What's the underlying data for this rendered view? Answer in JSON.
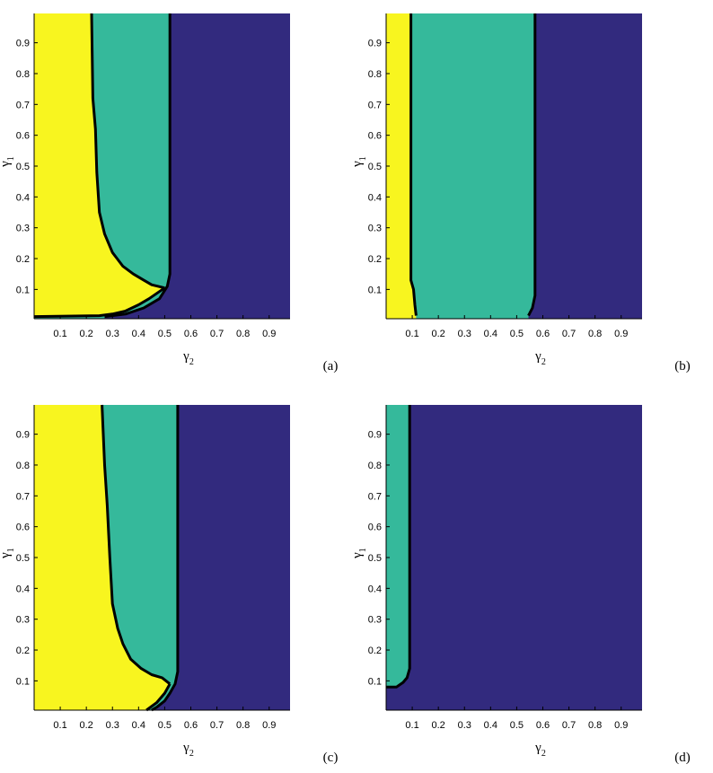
{
  "colors": {
    "yellow": "#f8f51f",
    "teal": "#35b99b",
    "navy": "#322a7e",
    "boundary": "#000000"
  },
  "chart_data": [
    {
      "type": "heatmap",
      "caption": "(a)",
      "xlabel": "γ",
      "xlabel_sub": "2",
      "ylabel": "γ",
      "ylabel_sub": "1",
      "xlim": [
        0,
        0.98
      ],
      "ylim": [
        0.005,
        0.995
      ],
      "xticks": [
        "0.1",
        "0.2",
        "0.3",
        "0.4",
        "0.5",
        "0.6",
        "0.7",
        "0.8",
        "0.9"
      ],
      "yticks": [
        "0.1",
        "0.2",
        "0.3",
        "0.4",
        "0.5",
        "0.6",
        "0.7",
        "0.8",
        "0.9"
      ],
      "regions": {
        "yellow_teal_boundary": [
          [
            0.22,
            0.995
          ],
          [
            0.225,
            0.72
          ],
          [
            0.235,
            0.62
          ],
          [
            0.24,
            0.48
          ],
          [
            0.25,
            0.35
          ],
          [
            0.27,
            0.28
          ],
          [
            0.3,
            0.22
          ],
          [
            0.34,
            0.175
          ],
          [
            0.38,
            0.15
          ],
          [
            0.42,
            0.13
          ],
          [
            0.45,
            0.115
          ],
          [
            0.5,
            0.105
          ]
        ],
        "yellow_lower_boundary": [
          [
            0.5,
            0.105
          ],
          [
            0.44,
            0.07
          ],
          [
            0.4,
            0.05
          ],
          [
            0.35,
            0.03
          ],
          [
            0.3,
            0.02
          ],
          [
            0.25,
            0.015
          ],
          [
            0.0,
            0.012
          ]
        ],
        "teal_navy_boundary": [
          [
            0.52,
            0.995
          ],
          [
            0.52,
            0.15
          ],
          [
            0.51,
            0.11
          ],
          [
            0.48,
            0.07
          ],
          [
            0.42,
            0.04
          ],
          [
            0.35,
            0.02
          ],
          [
            0.27,
            0.012
          ]
        ]
      }
    },
    {
      "type": "heatmap",
      "caption": "(b)",
      "xlabel": "γ",
      "xlabel_sub": "2",
      "ylabel": "γ",
      "ylabel_sub": "1",
      "xlim": [
        0,
        0.98
      ],
      "ylim": [
        0.005,
        0.995
      ],
      "xticks": [
        "0.1",
        "0.2",
        "0.3",
        "0.4",
        "0.5",
        "0.6",
        "0.7",
        "0.8",
        "0.9"
      ],
      "yticks": [
        "0.1",
        "0.2",
        "0.3",
        "0.4",
        "0.5",
        "0.6",
        "0.7",
        "0.8",
        "0.9"
      ],
      "regions": {
        "yellow_teal_boundary": [
          [
            0.095,
            0.995
          ],
          [
            0.095,
            0.13
          ],
          [
            0.105,
            0.1
          ],
          [
            0.11,
            0.05
          ],
          [
            0.115,
            0.015
          ]
        ],
        "yellow_lower_boundary": [],
        "teal_navy_boundary": [
          [
            0.57,
            0.995
          ],
          [
            0.57,
            0.08
          ],
          [
            0.56,
            0.04
          ],
          [
            0.545,
            0.015
          ]
        ]
      }
    },
    {
      "type": "heatmap",
      "caption": "(c)",
      "xlabel": "γ",
      "xlabel_sub": "2",
      "ylabel": "γ",
      "ylabel_sub": "1",
      "xlim": [
        0,
        0.98
      ],
      "ylim": [
        0.005,
        0.995
      ],
      "xticks": [
        "0.1",
        "0.2",
        "0.3",
        "0.4",
        "0.5",
        "0.6",
        "0.7",
        "0.8",
        "0.9"
      ],
      "yticks": [
        "0.1",
        "0.2",
        "0.3",
        "0.4",
        "0.5",
        "0.6",
        "0.7",
        "0.8",
        "0.9"
      ],
      "regions": {
        "yellow_teal_boundary": [
          [
            0.26,
            0.995
          ],
          [
            0.27,
            0.8
          ],
          [
            0.28,
            0.67
          ],
          [
            0.29,
            0.5
          ],
          [
            0.3,
            0.35
          ],
          [
            0.32,
            0.27
          ],
          [
            0.34,
            0.22
          ],
          [
            0.37,
            0.17
          ],
          [
            0.41,
            0.14
          ],
          [
            0.45,
            0.12
          ],
          [
            0.49,
            0.11
          ],
          [
            0.52,
            0.09
          ]
        ],
        "yellow_lower_boundary": [
          [
            0.52,
            0.09
          ],
          [
            0.5,
            0.06
          ],
          [
            0.47,
            0.03
          ],
          [
            0.43,
            0.005
          ]
        ],
        "teal_navy_boundary": [
          [
            0.55,
            0.995
          ],
          [
            0.55,
            0.13
          ],
          [
            0.54,
            0.09
          ],
          [
            0.52,
            0.06
          ],
          [
            0.5,
            0.035
          ],
          [
            0.47,
            0.015
          ],
          [
            0.45,
            0.005
          ]
        ]
      }
    },
    {
      "type": "heatmap",
      "caption": "(d)",
      "xlabel": "γ",
      "xlabel_sub": "2",
      "ylabel": "γ",
      "ylabel_sub": "1",
      "xlim": [
        0,
        0.98
      ],
      "ylim": [
        0.005,
        0.995
      ],
      "xticks": [
        "0.1",
        "0.2",
        "0.3",
        "0.4",
        "0.5",
        "0.6",
        "0.7",
        "0.8",
        "0.9"
      ],
      "yticks": [
        "0.1",
        "0.2",
        "0.3",
        "0.4",
        "0.5",
        "0.6",
        "0.7",
        "0.8",
        "0.9"
      ],
      "regions": {
        "yellow_teal_boundary": [],
        "yellow_lower_boundary": [],
        "teal_navy_boundary": [
          [
            0.09,
            0.995
          ],
          [
            0.09,
            0.14
          ],
          [
            0.08,
            0.11
          ],
          [
            0.065,
            0.095
          ],
          [
            0.04,
            0.08
          ],
          [
            0.0,
            0.08
          ]
        ]
      }
    }
  ]
}
